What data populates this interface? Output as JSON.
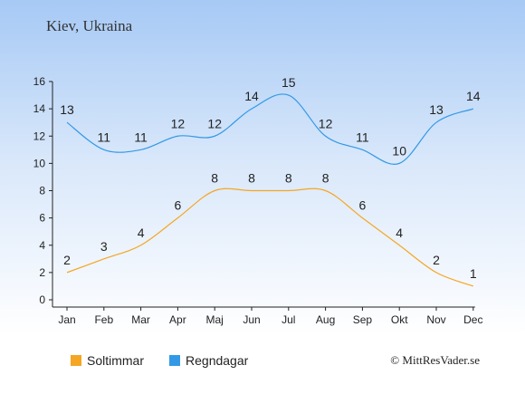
{
  "title": "Kiev, Ukraina",
  "credit": "© MittResVader.se",
  "chart_data": {
    "type": "line",
    "categories": [
      "Jan",
      "Feb",
      "Mar",
      "Apr",
      "Maj",
      "Jun",
      "Jul",
      "Aug",
      "Sep",
      "Okt",
      "Nov",
      "Dec"
    ],
    "ylim": [
      0,
      16
    ],
    "yticks": [
      0,
      2,
      4,
      6,
      8,
      10,
      12,
      14,
      16
    ],
    "grid": false,
    "legend_position": "bottom-left",
    "series": [
      {
        "name": "Soltimmar",
        "color": "#f5a623",
        "values": [
          2,
          3,
          4,
          6,
          8,
          8,
          8,
          8,
          6,
          4,
          2,
          1
        ]
      },
      {
        "name": "Regndagar",
        "color": "#3399e6",
        "values": [
          13,
          11,
          11,
          12,
          12,
          14,
          15,
          12,
          11,
          10,
          13,
          14
        ]
      }
    ]
  }
}
